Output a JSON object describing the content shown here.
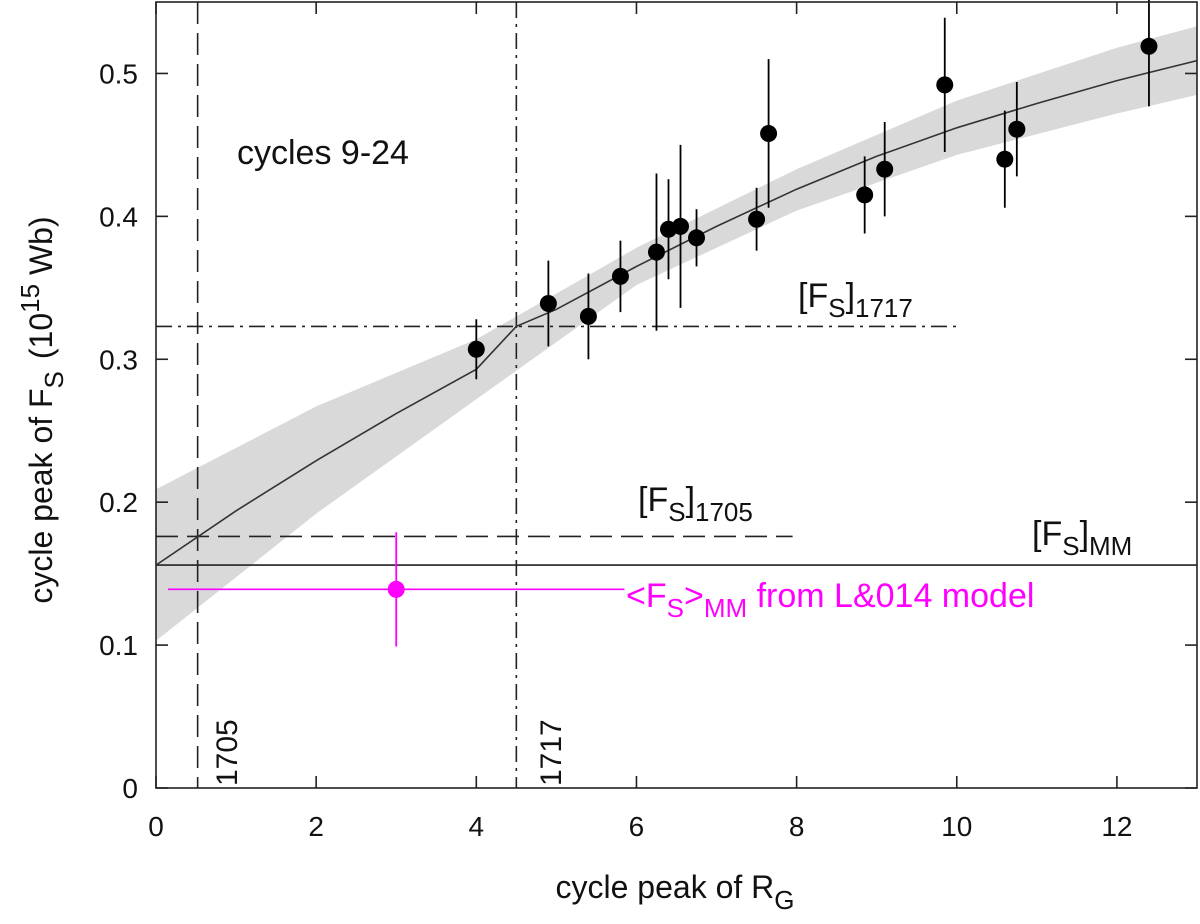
{
  "chart_data": {
    "type": "scatter",
    "title": "",
    "xlabel": {
      "main": "cycle peak of R",
      "sub": "G"
    },
    "ylabel": {
      "main": "cycle peak of F",
      "sub": "S",
      "pre_unit": "(10",
      "sup": "15",
      "post_unit": " Wb)"
    },
    "xlim": [
      0,
      13
    ],
    "ylim": [
      0,
      0.55
    ],
    "xticks": [
      0,
      2,
      4,
      6,
      8,
      10,
      12
    ],
    "xtick_labels": [
      "0",
      "2",
      "4",
      "6",
      "8",
      "10",
      "12"
    ],
    "yticks": [
      0,
      0.1,
      0.2,
      0.3,
      0.4,
      0.5
    ],
    "ytick_labels": [
      "0",
      "0.1",
      "0.2",
      "0.3",
      "0.4",
      "0.5"
    ],
    "fit_curve": {
      "x": [
        0,
        1,
        2,
        3,
        4,
        4.5,
        5,
        6,
        7,
        8,
        9,
        10,
        11,
        12,
        13
      ],
      "y": [
        0.156,
        0.194,
        0.229,
        0.262,
        0.293,
        0.323,
        0.335,
        0.365,
        0.393,
        0.419,
        0.442,
        0.462,
        0.479,
        0.495,
        0.509
      ]
    },
    "fit_band": {
      "x": [
        0,
        2,
        4,
        6,
        8,
        10,
        12,
        13
      ],
      "lower": [
        0.103,
        0.192,
        0.272,
        0.352,
        0.404,
        0.443,
        0.472,
        0.485
      ],
      "upper": [
        0.209,
        0.267,
        0.314,
        0.378,
        0.433,
        0.481,
        0.518,
        0.533
      ]
    },
    "series": [
      {
        "name": "cycles 9-24",
        "x": [
          4.0,
          4.9,
          5.4,
          5.8,
          6.25,
          6.4,
          6.55,
          6.75,
          7.5,
          7.65,
          8.85,
          9.1,
          9.85,
          10.6,
          10.75,
          12.4
        ],
        "y": [
          0.307,
          0.339,
          0.33,
          0.358,
          0.375,
          0.391,
          0.393,
          0.385,
          0.398,
          0.458,
          0.415,
          0.433,
          0.492,
          0.44,
          0.461,
          0.519
        ],
        "y_err": [
          0.021,
          0.03,
          0.03,
          0.025,
          0.055,
          0.035,
          0.057,
          0.02,
          0.022,
          0.052,
          0.027,
          0.033,
          0.047,
          0.034,
          0.033,
          0.042
        ]
      },
      {
        "name": "<F_S>_MM from L&014 model",
        "color": "#ff00ff",
        "x": [
          3.0
        ],
        "y": [
          0.139
        ],
        "x_err": [
          2.85
        ],
        "y_err": [
          0.04
        ]
      }
    ],
    "reference_lines": [
      {
        "id": "h1717",
        "orientation": "horizontal",
        "value": 0.323,
        "from": 0,
        "to": 10.05,
        "style": "dash-dot"
      },
      {
        "id": "h1705",
        "orientation": "horizontal",
        "value": 0.176,
        "from": 0,
        "to": 7.95,
        "style": "dashed"
      },
      {
        "id": "hMM",
        "orientation": "horizontal",
        "value": 0.156,
        "from": 0,
        "to": 13,
        "style": "solid"
      },
      {
        "id": "v1705",
        "orientation": "vertical",
        "value": 0.52,
        "style": "dashed"
      },
      {
        "id": "v1717",
        "orientation": "vertical",
        "value": 4.5,
        "style": "dash-dot"
      }
    ],
    "annotations": {
      "cycles": "cycles 9-24",
      "fs1717_main": "[F",
      "fs1717_sub": "S",
      "fs1717_close": "]",
      "fs1717_year": "1717",
      "fs1705_main": "[F",
      "fs1705_sub": "S",
      "fs1705_close": "]",
      "fs1705_year": "1705",
      "fsmm_main": "[F",
      "fsmm_sub": "S",
      "fsmm_close": "]",
      "fsmm_year": "MM",
      "model_open": "<F",
      "model_sub": "S",
      "model_close": ">",
      "model_mm": "MM",
      "model_rest": " from L&014 model",
      "vline1705": "1705",
      "vline1717": "1717"
    },
    "colors": {
      "band": "#d9d9d9",
      "points": "#000000",
      "magenta": "#ff00ff",
      "lines": "#222222"
    }
  }
}
